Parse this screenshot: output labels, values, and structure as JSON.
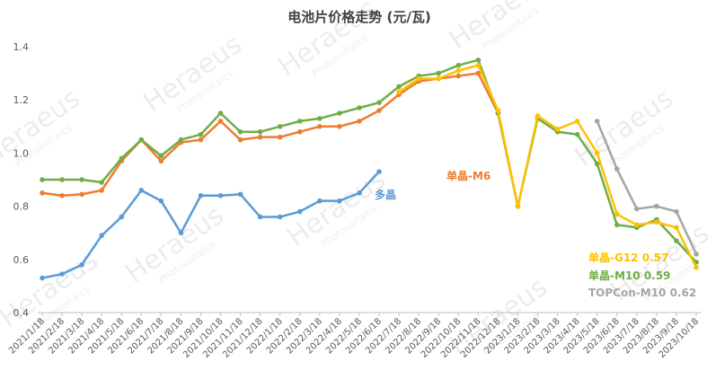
{
  "chart_data": {
    "type": "line",
    "title": "电池片价格走势 (元/瓦)",
    "watermark": {
      "text": "Heraeus",
      "subtext": "Photovoltaics"
    },
    "categories": [
      "2021/1/18",
      "2021/2/18",
      "2021/3/18",
      "2021/4/18",
      "2021/5/18",
      "2021/6/18",
      "2021/7/18",
      "2021/8/18",
      "2021/9/18",
      "2021/10/18",
      "2021/11/18",
      "2021/12/18",
      "2022/1/18",
      "2022/2/18",
      "2022/3/18",
      "2022/4/18",
      "2022/5/18",
      "2022/6/18",
      "2022/7/18",
      "2022/8/18",
      "2022/9/18",
      "2022/10/18",
      "2022/11/18",
      "2022/12/18",
      "2023/1/18",
      "2023/2/18",
      "2023/3/18",
      "2023/4/18",
      "2023/5/18",
      "2023/6/18",
      "2023/7/18",
      "2023/8/18",
      "2023/9/18",
      "2023/10/18"
    ],
    "series": [
      {
        "name": "多晶",
        "color": "#5b9bd5",
        "values": [
          0.53,
          0.545,
          0.58,
          0.69,
          0.76,
          0.86,
          0.82,
          0.7,
          0.84,
          0.84,
          0.845,
          0.76,
          0.76,
          0.78,
          0.82,
          0.82,
          0.85,
          0.93,
          null,
          null,
          null,
          null,
          null,
          null,
          null,
          null,
          null,
          null,
          null,
          null,
          null,
          null,
          null,
          null
        ]
      },
      {
        "name": "单晶-M6",
        "color": "#ed7d31",
        "values": [
          0.85,
          0.84,
          0.845,
          0.86,
          0.97,
          1.05,
          0.97,
          1.04,
          1.05,
          1.12,
          1.05,
          1.06,
          1.06,
          1.08,
          1.1,
          1.1,
          1.12,
          1.16,
          1.22,
          1.27,
          1.28,
          1.29,
          1.3,
          1.15,
          0.8,
          null,
          null,
          null,
          null,
          null,
          null,
          null,
          null,
          null
        ]
      },
      {
        "name": "单晶-M10 0.59",
        "color": "#70ad47",
        "values": [
          0.9,
          0.9,
          0.9,
          0.89,
          0.98,
          1.05,
          0.99,
          1.05,
          1.07,
          1.15,
          1.08,
          1.08,
          1.1,
          1.12,
          1.13,
          1.15,
          1.17,
          1.19,
          1.25,
          1.29,
          1.3,
          1.33,
          1.35,
          1.15,
          0.8,
          1.13,
          1.08,
          1.07,
          0.96,
          0.73,
          0.72,
          0.75,
          0.67,
          0.59
        ]
      },
      {
        "name": "单晶-G12 0.57",
        "color": "#ffc000",
        "values": [
          null,
          null,
          null,
          null,
          null,
          null,
          null,
          null,
          null,
          null,
          null,
          null,
          null,
          null,
          null,
          null,
          null,
          null,
          1.23,
          1.28,
          1.28,
          1.31,
          1.33,
          1.16,
          0.8,
          1.14,
          1.09,
          1.12,
          1.0,
          0.77,
          0.73,
          0.74,
          0.72,
          0.57
        ]
      },
      {
        "name": "TOPCon-M10 0.62",
        "color": "#a5a5a5",
        "values": [
          null,
          null,
          null,
          null,
          null,
          null,
          null,
          null,
          null,
          null,
          null,
          null,
          null,
          null,
          null,
          null,
          null,
          null,
          null,
          null,
          null,
          null,
          null,
          null,
          null,
          null,
          null,
          null,
          1.12,
          0.94,
          0.79,
          0.8,
          0.78,
          0.62
        ]
      }
    ],
    "ylim": [
      0.4,
      1.4
    ],
    "yticks": [
      0.4,
      0.6,
      0.8,
      {
        "value": 1,
        "label": "1.0"
      },
      1.2,
      1.4
    ],
    "grid": false
  }
}
